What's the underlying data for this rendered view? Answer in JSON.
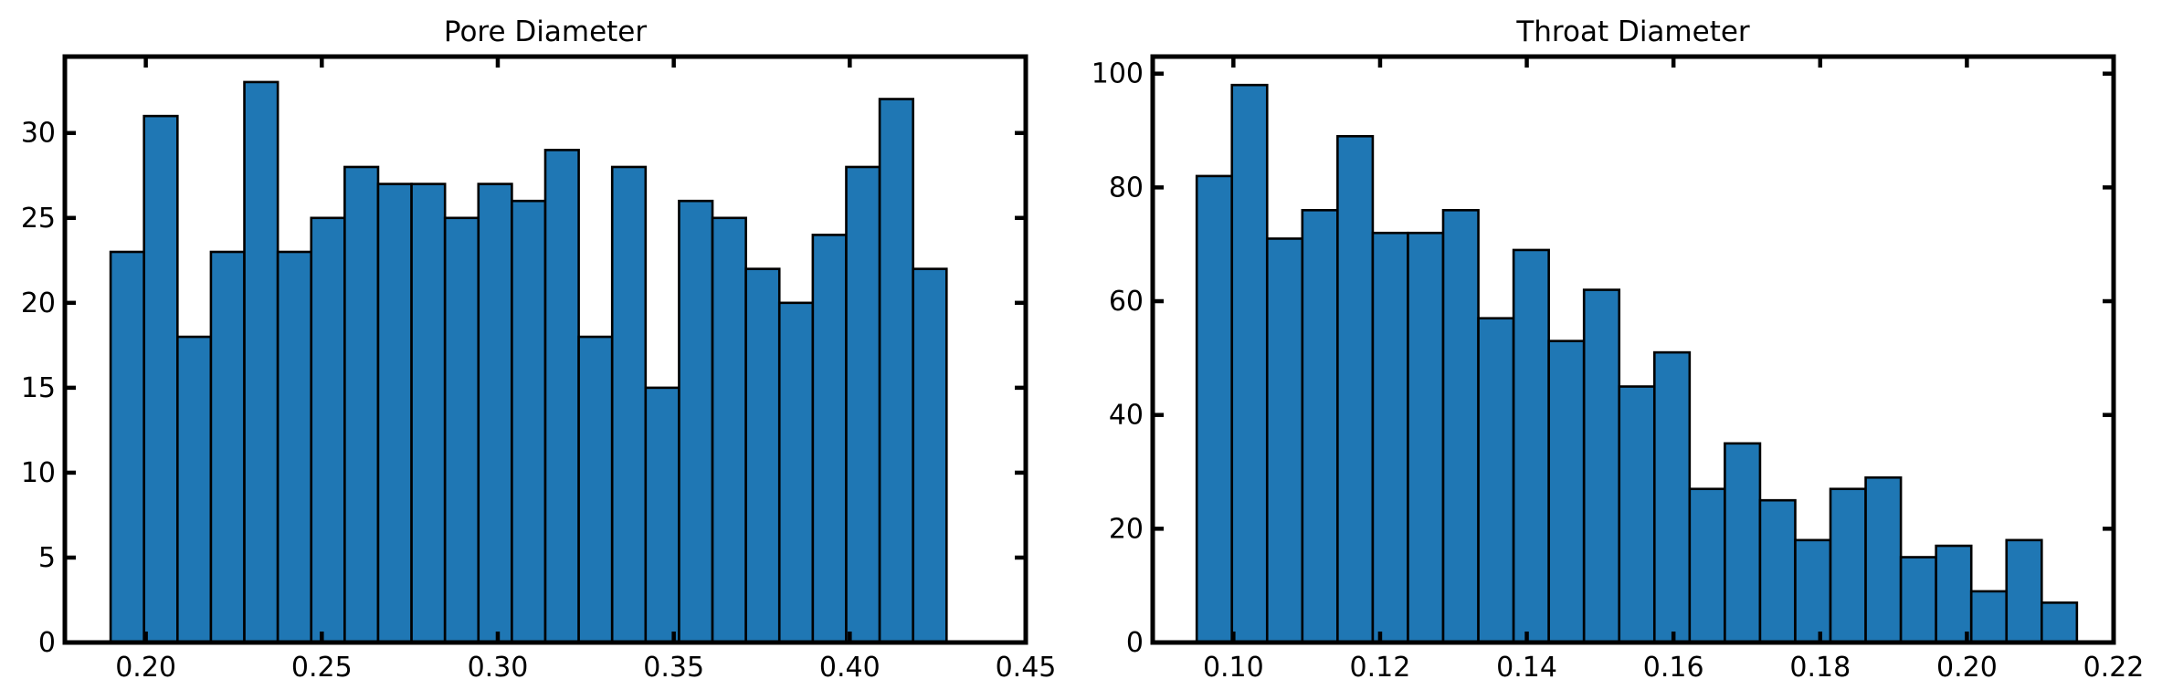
{
  "chart_data": [
    {
      "type": "bar",
      "title": "Pore Diameter",
      "xlabel": "",
      "ylabel": "",
      "xlim": [
        0.177,
        0.45
      ],
      "ylim": [
        0,
        34.5
      ],
      "bin_start": 0.19,
      "bin_width": 0.0095,
      "values": [
        23,
        31,
        18,
        23,
        33,
        23,
        25,
        28,
        27,
        27,
        25,
        27,
        26,
        29,
        18,
        28,
        15,
        26,
        25,
        22,
        20,
        24,
        28,
        32,
        22
      ],
      "xticks": [
        0.2,
        0.25,
        0.3,
        0.35,
        0.4,
        0.45
      ],
      "xtick_labels": [
        "0.20",
        "0.25",
        "0.30",
        "0.35",
        "0.40",
        "0.45"
      ],
      "yticks": [
        0,
        5,
        10,
        15,
        20,
        25,
        30
      ],
      "ytick_labels": [
        "0",
        "5",
        "10",
        "15",
        "20",
        "25",
        "30"
      ],
      "grid": false,
      "bar_color": "#1f77b4",
      "edge_color": "#000000"
    },
    {
      "type": "bar",
      "title": "Throat Diameter",
      "xlabel": "",
      "ylabel": "",
      "xlim": [
        0.089,
        0.22
      ],
      "ylim": [
        0,
        103
      ],
      "bin_start": 0.095,
      "bin_width": 0.0048,
      "values": [
        82,
        98,
        71,
        76,
        89,
        72,
        72,
        76,
        57,
        69,
        53,
        62,
        45,
        51,
        27,
        35,
        25,
        18,
        27,
        29,
        15,
        17,
        9,
        18,
        7
      ],
      "xticks": [
        0.1,
        0.12,
        0.14,
        0.16,
        0.18,
        0.2,
        0.22
      ],
      "xtick_labels": [
        "0.10",
        "0.12",
        "0.14",
        "0.16",
        "0.18",
        "0.20",
        "0.22"
      ],
      "yticks": [
        0,
        20,
        40,
        60,
        80,
        100
      ],
      "ytick_labels": [
        "0",
        "20",
        "40",
        "60",
        "80",
        "100"
      ],
      "grid": false,
      "bar_color": "#1f77b4",
      "edge_color": "#000000"
    }
  ]
}
